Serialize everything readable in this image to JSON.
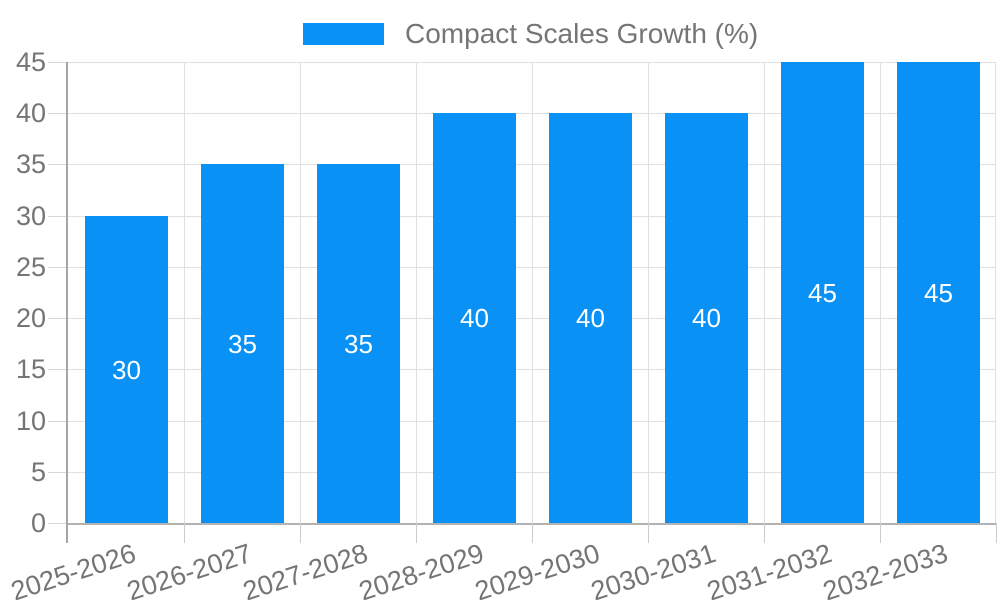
{
  "chart_data": {
    "type": "bar",
    "title": "Compact Scales Growth (%)",
    "legend": {
      "position": "top",
      "label": "Compact Scales Growth (%)"
    },
    "categories": [
      "2025-2026",
      "2026-2027",
      "2027-2028",
      "2028-2029",
      "2029-2030",
      "2030-2031",
      "2031-2032",
      "2032-2033"
    ],
    "values": [
      30,
      35,
      35,
      40,
      40,
      40,
      45,
      45
    ],
    "value_labels": [
      "30",
      "35",
      "35",
      "40",
      "40",
      "40",
      "45",
      "45"
    ],
    "xlabel": "",
    "ylabel": "",
    "ylim": [
      0,
      45
    ],
    "ytick_step": 5,
    "yticks": [
      0,
      5,
      10,
      15,
      20,
      25,
      30,
      35,
      40,
      45
    ],
    "grid": true,
    "colors": {
      "bar": "#0A91F5",
      "grid": "#e0e0e0",
      "axis_y": "#a6a6a6",
      "axis_x": "#b3b3b3",
      "ytick_mark": "#d6d6d6",
      "xtick_mark": "#cccccc",
      "axis_label": "#757575",
      "legend_text": "#757575",
      "value_label": "#ffffff",
      "background": "#ffffff"
    }
  }
}
